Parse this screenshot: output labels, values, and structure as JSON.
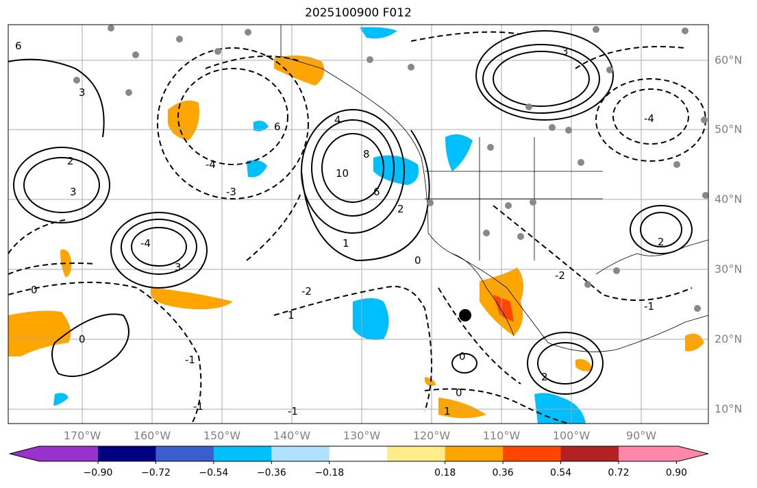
{
  "title": "2025100900 F012",
  "lat_labels": [
    "60°N",
    "50°N",
    "40°N",
    "30°N",
    "20°N",
    "10°N"
  ],
  "lon_labels": [
    "170°W",
    "160°W",
    "150°W",
    "140°W",
    "130°W",
    "120°W",
    "110°W",
    "100°W",
    "90°W"
  ],
  "colorbar": {
    "ticks": [
      "−0.90",
      "−0.72",
      "−0.54",
      "−0.36",
      "−0.18",
      "0.18",
      "0.36",
      "0.54",
      "0.72",
      "0.90"
    ],
    "colors": [
      "#9932CC",
      "#000080",
      "#3A5FCD",
      "#00BFFF",
      "#B0E2FF",
      "#FFFFFF",
      "#FFEC8B",
      "#FFA500",
      "#FF4500",
      "#B22222",
      "#FF88AA"
    ]
  },
  "contour_labels": [
    "6",
    "3",
    "3",
    "6",
    "2",
    "3",
    "10",
    "8",
    "6",
    "4",
    "2",
    "1",
    "0",
    "-3",
    "-4",
    "-4",
    "3",
    "0",
    "1",
    "-1",
    "0",
    "-2",
    "-1",
    "2",
    "0",
    "-1",
    "0",
    "-2",
    "-4",
    "1",
    "-1",
    "2"
  ]
}
